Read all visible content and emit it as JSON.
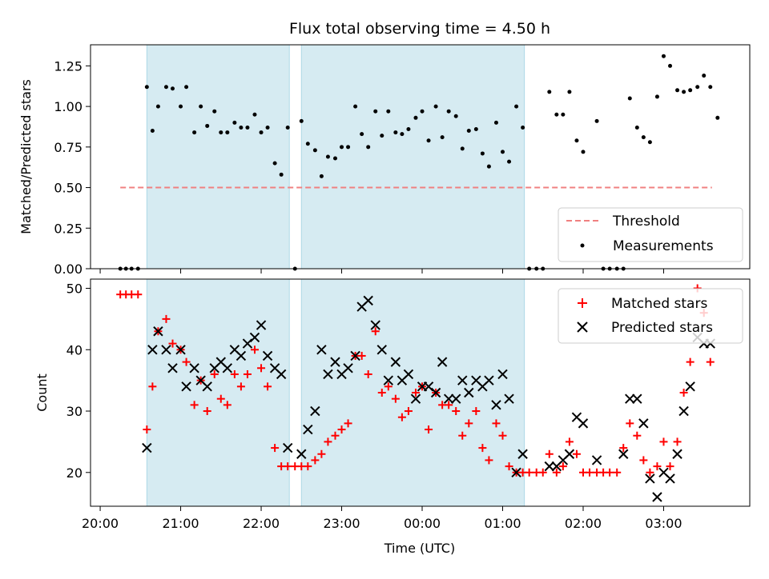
{
  "chart_data": [
    {
      "type": "scatter",
      "title": "Flux total observing time = 4.50 h",
      "ylabel": "Matched/Predicted stars",
      "xlabel": "",
      "ylim": [
        0,
        1.38
      ],
      "yticks": [
        "0.00",
        "0.25",
        "0.50",
        "0.75",
        "1.00",
        "1.25"
      ],
      "ytick_values": [
        0,
        0.25,
        0.5,
        0.75,
        1.0,
        1.25
      ],
      "grid": false,
      "legend_position": "lower-right",
      "threshold": {
        "name": "Threshold",
        "value": 0.5,
        "x_start": 20.25,
        "x_end": 27.6,
        "color": "#f08080"
      },
      "shaded_intervals": [
        [
          20.58,
          22.35
        ],
        [
          22.5,
          25.27
        ]
      ],
      "shade_color": "#add8e6",
      "series": [
        {
          "name": "Measurements",
          "color": "#000000",
          "points": [
            [
              20.25,
              0
            ],
            [
              20.32,
              0
            ],
            [
              20.39,
              0
            ],
            [
              20.47,
              0
            ],
            [
              20.58,
              1.12
            ],
            [
              20.65,
              0.85
            ],
            [
              20.72,
              1.0
            ],
            [
              20.82,
              1.12
            ],
            [
              20.9,
              1.11
            ],
            [
              21.0,
              1.0
            ],
            [
              21.07,
              1.12
            ],
            [
              21.17,
              0.84
            ],
            [
              21.25,
              1.0
            ],
            [
              21.33,
              0.88
            ],
            [
              21.42,
              0.97
            ],
            [
              21.5,
              0.84
            ],
            [
              21.58,
              0.84
            ],
            [
              21.67,
              0.9
            ],
            [
              21.75,
              0.87
            ],
            [
              21.83,
              0.87
            ],
            [
              21.92,
              0.95
            ],
            [
              22.0,
              0.84
            ],
            [
              22.08,
              0.87
            ],
            [
              22.17,
              0.65
            ],
            [
              22.25,
              0.58
            ],
            [
              22.33,
              0.87
            ],
            [
              22.42,
              0
            ],
            [
              22.5,
              0.91
            ],
            [
              22.58,
              0.77
            ],
            [
              22.67,
              0.73
            ],
            [
              22.75,
              0.57
            ],
            [
              22.83,
              0.69
            ],
            [
              22.92,
              0.68
            ],
            [
              23.0,
              0.75
            ],
            [
              23.08,
              0.75
            ],
            [
              23.17,
              1.0
            ],
            [
              23.25,
              0.83
            ],
            [
              23.33,
              0.75
            ],
            [
              23.42,
              0.97
            ],
            [
              23.5,
              0.82
            ],
            [
              23.58,
              0.97
            ],
            [
              23.67,
              0.84
            ],
            [
              23.75,
              0.83
            ],
            [
              23.83,
              0.86
            ],
            [
              23.92,
              0.93
            ],
            [
              24.0,
              0.97
            ],
            [
              24.08,
              0.79
            ],
            [
              24.17,
              1.0
            ],
            [
              24.25,
              0.81
            ],
            [
              24.33,
              0.97
            ],
            [
              24.42,
              0.94
            ],
            [
              24.5,
              0.74
            ],
            [
              24.58,
              0.85
            ],
            [
              24.67,
              0.86
            ],
            [
              24.75,
              0.71
            ],
            [
              24.83,
              0.63
            ],
            [
              24.92,
              0.9
            ],
            [
              25.0,
              0.72
            ],
            [
              25.08,
              0.66
            ],
            [
              25.17,
              1.0
            ],
            [
              25.25,
              0.87
            ],
            [
              25.33,
              0
            ],
            [
              25.42,
              0
            ],
            [
              25.5,
              0
            ],
            [
              25.58,
              1.09
            ],
            [
              25.67,
              0.95
            ],
            [
              25.75,
              0.95
            ],
            [
              25.83,
              1.09
            ],
            [
              25.92,
              0.79
            ],
            [
              26.0,
              0.72
            ],
            [
              26.17,
              0.91
            ],
            [
              26.25,
              0
            ],
            [
              26.33,
              0
            ],
            [
              26.42,
              0
            ],
            [
              26.5,
              0
            ],
            [
              26.58,
              1.05
            ],
            [
              26.67,
              0.87
            ],
            [
              26.75,
              0.81
            ],
            [
              26.83,
              0.78
            ],
            [
              26.92,
              1.06
            ],
            [
              27.0,
              1.31
            ],
            [
              27.08,
              1.25
            ],
            [
              27.17,
              1.1
            ],
            [
              27.25,
              1.09
            ],
            [
              27.33,
              1.1
            ],
            [
              27.42,
              1.12
            ],
            [
              27.5,
              1.19
            ],
            [
              27.58,
              1.12
            ],
            [
              27.67,
              0.93
            ]
          ]
        }
      ]
    },
    {
      "type": "scatter",
      "title": "",
      "ylabel": "Count",
      "xlabel": "Time (UTC)",
      "ylim": [
        14.5,
        51.5
      ],
      "yticks": [
        "20",
        "30",
        "40",
        "50"
      ],
      "ytick_values": [
        20,
        30,
        40,
        50
      ],
      "xlim": [
        19.88,
        28.07
      ],
      "xticks": [
        "20:00",
        "21:00",
        "22:00",
        "23:00",
        "00:00",
        "01:00",
        "02:00",
        "03:00"
      ],
      "xtick_values": [
        20,
        21,
        22,
        23,
        24,
        25,
        26,
        27
      ],
      "grid": false,
      "legend_position": "upper-right",
      "shaded_intervals": [
        [
          20.58,
          22.35
        ],
        [
          22.5,
          25.27
        ]
      ],
      "shade_color": "#add8e6",
      "series": [
        {
          "name": "Matched stars",
          "color": "#ff0000",
          "marker": "plus",
          "points": [
            [
              20.25,
              49
            ],
            [
              20.32,
              49
            ],
            [
              20.39,
              49
            ],
            [
              20.47,
              49
            ],
            [
              20.58,
              27
            ],
            [
              20.65,
              34
            ],
            [
              20.72,
              43
            ],
            [
              20.82,
              45
            ],
            [
              20.9,
              41
            ],
            [
              21.0,
              40
            ],
            [
              21.07,
              38
            ],
            [
              21.17,
              31
            ],
            [
              21.25,
              35
            ],
            [
              21.33,
              30
            ],
            [
              21.42,
              36
            ],
            [
              21.5,
              32
            ],
            [
              21.58,
              31
            ],
            [
              21.67,
              36
            ],
            [
              21.75,
              34
            ],
            [
              21.83,
              36
            ],
            [
              21.92,
              40
            ],
            [
              22.0,
              37
            ],
            [
              22.08,
              34
            ],
            [
              22.17,
              24
            ],
            [
              22.25,
              21
            ],
            [
              22.33,
              21
            ],
            [
              22.42,
              21
            ],
            [
              22.5,
              21
            ],
            [
              22.58,
              21
            ],
            [
              22.67,
              22
            ],
            [
              22.75,
              23
            ],
            [
              22.83,
              25
            ],
            [
              22.92,
              26
            ],
            [
              23.0,
              27
            ],
            [
              23.08,
              28
            ],
            [
              23.17,
              39
            ],
            [
              23.25,
              39
            ],
            [
              23.33,
              36
            ],
            [
              23.42,
              43
            ],
            [
              23.5,
              33
            ],
            [
              23.58,
              34
            ],
            [
              23.67,
              32
            ],
            [
              23.75,
              29
            ],
            [
              23.83,
              30
            ],
            [
              23.92,
              33
            ],
            [
              24.0,
              34
            ],
            [
              24.08,
              27
            ],
            [
              24.17,
              33
            ],
            [
              24.25,
              31
            ],
            [
              24.33,
              31
            ],
            [
              24.42,
              30
            ],
            [
              24.5,
              26
            ],
            [
              24.58,
              28
            ],
            [
              24.67,
              30
            ],
            [
              24.75,
              24
            ],
            [
              24.83,
              22
            ],
            [
              24.92,
              28
            ],
            [
              25.0,
              26
            ],
            [
              25.08,
              21
            ],
            [
              25.17,
              20
            ],
            [
              25.25,
              20
            ],
            [
              25.33,
              20
            ],
            [
              25.42,
              20
            ],
            [
              25.5,
              20
            ],
            [
              25.58,
              23
            ],
            [
              25.67,
              20
            ],
            [
              25.75,
              21
            ],
            [
              25.83,
              25
            ],
            [
              25.92,
              23
            ],
            [
              26.0,
              20
            ],
            [
              26.08,
              20
            ],
            [
              26.17,
              20
            ],
            [
              26.25,
              20
            ],
            [
              26.33,
              20
            ],
            [
              26.42,
              20
            ],
            [
              26.5,
              24
            ],
            [
              26.58,
              28
            ],
            [
              26.67,
              26
            ],
            [
              26.75,
              22
            ],
            [
              26.83,
              20
            ],
            [
              26.92,
              21
            ],
            [
              27.0,
              25
            ],
            [
              27.08,
              21
            ],
            [
              27.17,
              25
            ],
            [
              27.25,
              33
            ],
            [
              27.33,
              38
            ],
            [
              27.42,
              50
            ],
            [
              27.5,
              46
            ],
            [
              27.58,
              38
            ]
          ]
        },
        {
          "name": "Predicted stars",
          "color": "#000000",
          "marker": "x",
          "points": [
            [
              20.58,
              24
            ],
            [
              20.65,
              40
            ],
            [
              20.72,
              43
            ],
            [
              20.82,
              40
            ],
            [
              20.9,
              37
            ],
            [
              21.0,
              40
            ],
            [
              21.07,
              34
            ],
            [
              21.17,
              37
            ],
            [
              21.25,
              35
            ],
            [
              21.33,
              34
            ],
            [
              21.42,
              37
            ],
            [
              21.5,
              38
            ],
            [
              21.58,
              37
            ],
            [
              21.67,
              40
            ],
            [
              21.75,
              39
            ],
            [
              21.83,
              41
            ],
            [
              21.92,
              42
            ],
            [
              22.0,
              44
            ],
            [
              22.08,
              39
            ],
            [
              22.17,
              37
            ],
            [
              22.25,
              36
            ],
            [
              22.33,
              24
            ],
            [
              22.5,
              23
            ],
            [
              22.58,
              27
            ],
            [
              22.67,
              30
            ],
            [
              22.75,
              40
            ],
            [
              22.83,
              36
            ],
            [
              22.92,
              38
            ],
            [
              23.0,
              36
            ],
            [
              23.08,
              37
            ],
            [
              23.17,
              39
            ],
            [
              23.25,
              47
            ],
            [
              23.33,
              48
            ],
            [
              23.42,
              44
            ],
            [
              23.5,
              40
            ],
            [
              23.58,
              35
            ],
            [
              23.67,
              38
            ],
            [
              23.75,
              35
            ],
            [
              23.83,
              36
            ],
            [
              23.92,
              32
            ],
            [
              24.0,
              34
            ],
            [
              24.08,
              34
            ],
            [
              24.17,
              33
            ],
            [
              24.25,
              38
            ],
            [
              24.33,
              32
            ],
            [
              24.42,
              32
            ],
            [
              24.5,
              35
            ],
            [
              24.58,
              33
            ],
            [
              24.67,
              35
            ],
            [
              24.75,
              34
            ],
            [
              24.83,
              35
            ],
            [
              24.92,
              31
            ],
            [
              25.0,
              36
            ],
            [
              25.08,
              32
            ],
            [
              25.17,
              20
            ],
            [
              25.25,
              23
            ],
            [
              25.58,
              21
            ],
            [
              25.67,
              21
            ],
            [
              25.75,
              22
            ],
            [
              25.83,
              23
            ],
            [
              25.92,
              29
            ],
            [
              26.0,
              28
            ],
            [
              26.17,
              22
            ],
            [
              26.5,
              23
            ],
            [
              26.58,
              32
            ],
            [
              26.67,
              32
            ],
            [
              26.75,
              28
            ],
            [
              26.83,
              19
            ],
            [
              26.92,
              16
            ],
            [
              27.0,
              20
            ],
            [
              27.08,
              19
            ],
            [
              27.17,
              23
            ],
            [
              27.25,
              30
            ],
            [
              27.33,
              34
            ],
            [
              27.42,
              42
            ],
            [
              27.5,
              41
            ],
            [
              27.58,
              41
            ]
          ]
        }
      ]
    }
  ]
}
